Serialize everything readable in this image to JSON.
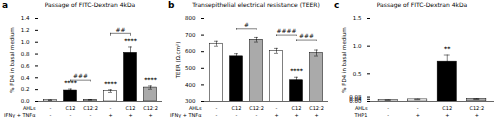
{
  "chart_data": [
    {
      "type": "bar",
      "panel_label": "a",
      "title": "Passage of FITC-Dextran 4kDa",
      "ylabel": "% FD4 in basal medium",
      "category_rows": [
        "AHLs",
        "IFNγ + TNFα"
      ],
      "categories": [
        [
          "-",
          "-"
        ],
        [
          "C12",
          "-"
        ],
        [
          "C12:2",
          "-"
        ],
        [
          "-",
          "+"
        ],
        [
          "C12",
          "+"
        ],
        [
          "C12:2",
          "+"
        ]
      ],
      "values": [
        0.022,
        0.185,
        0.028,
        0.175,
        0.82,
        0.235
      ],
      "errors": [
        0.004,
        0.025,
        0.005,
        0.022,
        0.1,
        0.028
      ],
      "colors": [
        "white",
        "black",
        "#aaaaaa",
        "white",
        "black",
        "#aaaaaa"
      ],
      "ylim": [
        0,
        1.4
      ],
      "yticks": [
        {
          "value": 0.0,
          "label": "0.0"
        },
        0.2,
        0.4,
        0.6,
        0.8,
        {
          "value": 1.0,
          "label": "1.0"
        },
        1.2,
        1.4
      ],
      "annotations": [
        {
          "index": 1,
          "text": "****"
        },
        {
          "index": 3,
          "text": "****"
        },
        {
          "index": 4,
          "text": "****"
        },
        {
          "index": 5,
          "text": "****"
        }
      ],
      "brackets": [
        {
          "from": 1,
          "to": 2,
          "y": 0.36,
          "tick_height": 0.03,
          "text": "###"
        },
        {
          "from": 3,
          "to": 4,
          "y": 1.15,
          "tick_height": 0.05,
          "text": "##"
        }
      ]
    },
    {
      "type": "bar",
      "panel_label": "b",
      "title": "Transepithelial electrical resistance (TEER)",
      "ylabel": "TEER (Ω.cm²)",
      "category_rows": [
        "AHLs",
        "IFNγ + TNFα"
      ],
      "categories": [
        [
          "-",
          "-"
        ],
        [
          "C12",
          "-"
        ],
        [
          "C12:2",
          "-"
        ],
        [
          "-",
          "+"
        ],
        [
          "C12",
          "+"
        ],
        [
          "C12:2",
          "+"
        ]
      ],
      "values": [
        648,
        572,
        672,
        605,
        428,
        592
      ],
      "errors": [
        15,
        16,
        14,
        15,
        18,
        18
      ],
      "colors": [
        "white",
        "black",
        "#aaaaaa",
        "white",
        "black",
        "#aaaaaa"
      ],
      "ylim": [
        300,
        800
      ],
      "yticks": [
        300,
        400,
        500,
        600,
        700,
        800
      ],
      "annotations": [
        {
          "index": 4,
          "text": "****"
        }
      ],
      "brackets": [
        {
          "from": 1,
          "to": 2,
          "y": 738,
          "tick_height": 8,
          "text": "#"
        },
        {
          "from": 3,
          "to": 4,
          "y": 700,
          "tick_height": 8,
          "text": "####"
        },
        {
          "from": 4,
          "to": 5,
          "y": 670,
          "tick_height": 8,
          "text": "###"
        }
      ]
    },
    {
      "type": "bar",
      "panel_label": "c",
      "title": "Passage of FITC-Dextran 4kDa",
      "ylabel": "% FD4 in basal medium",
      "category_rows": [
        "AHLs",
        "THP1"
      ],
      "categories": [
        [
          "-",
          "-"
        ],
        [
          "-",
          "+"
        ],
        [
          "C12",
          "+"
        ],
        [
          "C12:2",
          "+"
        ]
      ],
      "values": [
        0.025,
        0.038,
        0.72,
        0.043
      ],
      "errors": [
        0.004,
        0.006,
        0.12,
        0.008
      ],
      "colors": [
        "white",
        "white",
        "black",
        "#aaaaaa"
      ],
      "ylim": [
        0.0,
        1.5
      ],
      "yticks": [
        {
          "value": 0.0,
          "label": "0.00"
        },
        0.04,
        0.08,
        0.5,
        {
          "value": 1.0,
          "label": "1.0"
        },
        1.5
      ],
      "annotations": [
        {
          "index": 2,
          "text": "**"
        }
      ],
      "brackets": []
    }
  ]
}
